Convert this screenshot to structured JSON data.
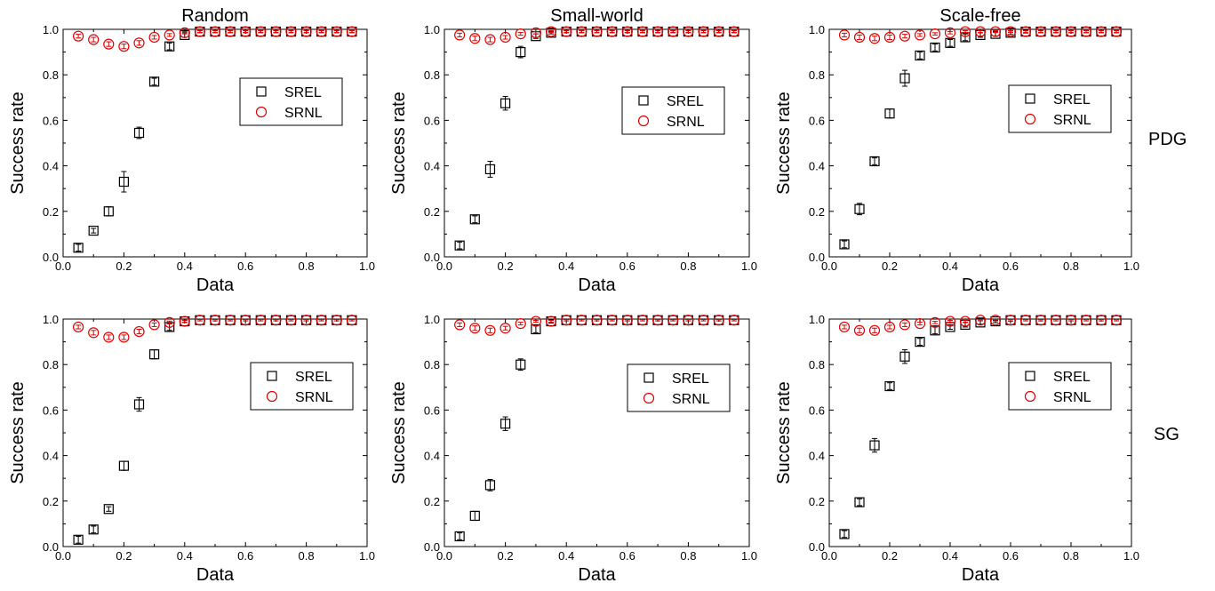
{
  "row_labels": [
    "PDG",
    "SG"
  ],
  "chart_data": [
    {
      "type": "scatter",
      "title": "Random",
      "xlabel": "Data",
      "ylabel": "Success rate",
      "xlim": [
        0.0,
        1.0
      ],
      "ylim": [
        0.0,
        1.0
      ],
      "xticks": [
        "0.0",
        "0.2",
        "0.4",
        "0.6",
        "0.8",
        "1.0"
      ],
      "yticks": [
        "0.0",
        "0.2",
        "0.4",
        "0.6",
        "0.8",
        "1.0"
      ],
      "legend_position": "right",
      "x": [
        0.05,
        0.1,
        0.15,
        0.2,
        0.25,
        0.3,
        0.35,
        0.4,
        0.45,
        0.5,
        0.55,
        0.6,
        0.65,
        0.7,
        0.75,
        0.8,
        0.85,
        0.9,
        0.95
      ],
      "series": [
        {
          "name": "SREL",
          "marker": "square",
          "color": "#000000",
          "values": [
            0.04,
            0.115,
            0.2,
            0.33,
            0.545,
            0.77,
            0.925,
            0.975,
            0.99,
            0.99,
            0.99,
            0.99,
            0.99,
            0.99,
            0.99,
            0.99,
            0.99,
            0.99,
            0.99
          ],
          "errors": [
            0.015,
            0.01,
            0.02,
            0.045,
            0.025,
            0.015,
            0.015,
            0.01,
            0.005,
            0.005,
            0.005,
            0.005,
            0.005,
            0.005,
            0.005,
            0.005,
            0.005,
            0.005,
            0.005
          ]
        },
        {
          "name": "SRNL",
          "marker": "circle",
          "color": "#e00000",
          "values": [
            0.97,
            0.955,
            0.935,
            0.925,
            0.94,
            0.965,
            0.975,
            0.985,
            0.99,
            0.99,
            0.99,
            0.99,
            0.99,
            0.99,
            0.99,
            0.99,
            0.99,
            0.99,
            0.99
          ],
          "errors": [
            0.008,
            0.01,
            0.01,
            0.01,
            0.01,
            0.008,
            0.006,
            0.005,
            0.004,
            0.004,
            0.004,
            0.004,
            0.004,
            0.004,
            0.004,
            0.004,
            0.004,
            0.004,
            0.004
          ]
        }
      ]
    },
    {
      "type": "scatter",
      "title": "Small-world",
      "xlabel": "Data",
      "ylabel": "Success rate",
      "xlim": [
        0.0,
        1.0
      ],
      "ylim": [
        0.0,
        1.0
      ],
      "xticks": [
        "0.0",
        "0.2",
        "0.4",
        "0.6",
        "0.8",
        "1.0"
      ],
      "yticks": [
        "0.0",
        "0.2",
        "0.4",
        "0.6",
        "0.8",
        "1.0"
      ],
      "legend_position": "right",
      "x": [
        0.05,
        0.1,
        0.15,
        0.2,
        0.25,
        0.3,
        0.35,
        0.4,
        0.45,
        0.5,
        0.55,
        0.6,
        0.65,
        0.7,
        0.75,
        0.8,
        0.85,
        0.9,
        0.95
      ],
      "series": [
        {
          "name": "SREL",
          "marker": "square",
          "color": "#000000",
          "values": [
            0.05,
            0.165,
            0.385,
            0.675,
            0.9,
            0.97,
            0.985,
            0.99,
            0.99,
            0.99,
            0.99,
            0.99,
            0.99,
            0.99,
            0.99,
            0.99,
            0.99,
            0.99,
            0.99
          ],
          "errors": [
            0.015,
            0.015,
            0.035,
            0.03,
            0.025,
            0.01,
            0.005,
            0.005,
            0.005,
            0.005,
            0.005,
            0.005,
            0.005,
            0.005,
            0.005,
            0.005,
            0.005,
            0.005,
            0.005
          ]
        },
        {
          "name": "SRNL",
          "marker": "circle",
          "color": "#e00000",
          "values": [
            0.975,
            0.96,
            0.955,
            0.965,
            0.98,
            0.985,
            0.99,
            0.99,
            0.99,
            0.99,
            0.99,
            0.99,
            0.99,
            0.99,
            0.99,
            0.99,
            0.99,
            0.99,
            0.99
          ],
          "errors": [
            0.008,
            0.01,
            0.01,
            0.008,
            0.006,
            0.005,
            0.004,
            0.004,
            0.004,
            0.004,
            0.004,
            0.004,
            0.004,
            0.004,
            0.004,
            0.004,
            0.004,
            0.004,
            0.004
          ]
        }
      ]
    },
    {
      "type": "scatter",
      "title": "Scale-free",
      "xlabel": "Data",
      "ylabel": "Success rate",
      "xlim": [
        0.0,
        1.0
      ],
      "ylim": [
        0.0,
        1.0
      ],
      "xticks": [
        "0.0",
        "0.2",
        "0.4",
        "0.6",
        "0.8",
        "1.0"
      ],
      "yticks": [
        "0.0",
        "0.2",
        "0.4",
        "0.6",
        "0.8",
        "1.0"
      ],
      "legend_position": "right",
      "x": [
        0.05,
        0.1,
        0.15,
        0.2,
        0.25,
        0.3,
        0.35,
        0.4,
        0.45,
        0.5,
        0.55,
        0.6,
        0.65,
        0.7,
        0.75,
        0.8,
        0.85,
        0.9,
        0.95
      ],
      "series": [
        {
          "name": "SREL",
          "marker": "square",
          "color": "#000000",
          "values": [
            0.055,
            0.21,
            0.42,
            0.63,
            0.785,
            0.885,
            0.92,
            0.94,
            0.965,
            0.975,
            0.98,
            0.985,
            0.99,
            0.99,
            0.99,
            0.99,
            0.99,
            0.99,
            0.99
          ],
          "errors": [
            0.015,
            0.025,
            0.015,
            0.02,
            0.035,
            0.015,
            0.015,
            0.015,
            0.015,
            0.01,
            0.01,
            0.008,
            0.006,
            0.005,
            0.005,
            0.005,
            0.005,
            0.005,
            0.005
          ]
        },
        {
          "name": "SRNL",
          "marker": "circle",
          "color": "#e00000",
          "values": [
            0.975,
            0.965,
            0.96,
            0.965,
            0.97,
            0.975,
            0.98,
            0.985,
            0.99,
            0.99,
            0.99,
            0.99,
            0.99,
            0.99,
            0.99,
            0.99,
            0.99,
            0.99,
            0.99
          ],
          "errors": [
            0.008,
            0.01,
            0.01,
            0.01,
            0.008,
            0.006,
            0.005,
            0.005,
            0.004,
            0.004,
            0.004,
            0.004,
            0.004,
            0.004,
            0.004,
            0.004,
            0.004,
            0.004,
            0.004
          ]
        }
      ]
    },
    {
      "type": "scatter",
      "title": "",
      "xlabel": "Data",
      "ylabel": "Success rate",
      "xlim": [
        0.0,
        1.0
      ],
      "ylim": [
        0.0,
        1.0
      ],
      "xticks": [
        "0.0",
        "0.2",
        "0.4",
        "0.6",
        "0.8",
        "1.0"
      ],
      "yticks": [
        "0.0",
        "0.2",
        "0.4",
        "0.6",
        "0.8",
        "1.0"
      ],
      "legend_position": "right",
      "x": [
        0.05,
        0.1,
        0.15,
        0.2,
        0.25,
        0.3,
        0.35,
        0.4,
        0.45,
        0.5,
        0.55,
        0.6,
        0.65,
        0.7,
        0.75,
        0.8,
        0.85,
        0.9,
        0.95
      ],
      "series": [
        {
          "name": "SREL",
          "marker": "square",
          "color": "#000000",
          "values": [
            0.03,
            0.075,
            0.165,
            0.355,
            0.625,
            0.845,
            0.965,
            0.99,
            0.995,
            0.995,
            0.995,
            0.995,
            0.995,
            0.995,
            0.995,
            0.995,
            0.995,
            0.995,
            0.995
          ],
          "errors": [
            0.015,
            0.015,
            0.01,
            0.02,
            0.03,
            0.02,
            0.015,
            0.005,
            0.003,
            0.003,
            0.003,
            0.003,
            0.003,
            0.003,
            0.003,
            0.003,
            0.003,
            0.003,
            0.003
          ]
        },
        {
          "name": "SRNL",
          "marker": "circle",
          "color": "#e00000",
          "values": [
            0.965,
            0.94,
            0.92,
            0.92,
            0.945,
            0.975,
            0.985,
            0.99,
            0.995,
            0.995,
            0.995,
            0.995,
            0.995,
            0.995,
            0.995,
            0.995,
            0.995,
            0.995,
            0.995
          ],
          "errors": [
            0.008,
            0.01,
            0.01,
            0.01,
            0.01,
            0.008,
            0.006,
            0.004,
            0.003,
            0.003,
            0.003,
            0.003,
            0.003,
            0.003,
            0.003,
            0.003,
            0.003,
            0.003,
            0.003
          ]
        }
      ]
    },
    {
      "type": "scatter",
      "title": "",
      "xlabel": "Data",
      "ylabel": "Success rate",
      "xlim": [
        0.0,
        1.0
      ],
      "ylim": [
        0.0,
        1.0
      ],
      "xticks": [
        "0.0",
        "0.2",
        "0.4",
        "0.6",
        "0.8",
        "1.0"
      ],
      "yticks": [
        "0.0",
        "0.2",
        "0.4",
        "0.6",
        "0.8",
        "1.0"
      ],
      "legend_position": "right",
      "x": [
        0.05,
        0.1,
        0.15,
        0.2,
        0.25,
        0.3,
        0.35,
        0.4,
        0.45,
        0.5,
        0.55,
        0.6,
        0.65,
        0.7,
        0.75,
        0.8,
        0.85,
        0.9,
        0.95
      ],
      "series": [
        {
          "name": "SREL",
          "marker": "square",
          "color": "#000000",
          "values": [
            0.045,
            0.135,
            0.27,
            0.54,
            0.8,
            0.955,
            0.99,
            0.995,
            0.995,
            0.995,
            0.995,
            0.995,
            0.995,
            0.995,
            0.995,
            0.995,
            0.995,
            0.995,
            0.995
          ],
          "errors": [
            0.015,
            0.02,
            0.025,
            0.03,
            0.025,
            0.015,
            0.008,
            0.003,
            0.003,
            0.003,
            0.003,
            0.003,
            0.003,
            0.003,
            0.003,
            0.003,
            0.003,
            0.003,
            0.003
          ]
        },
        {
          "name": "SRNL",
          "marker": "circle",
          "color": "#e00000",
          "values": [
            0.975,
            0.96,
            0.95,
            0.96,
            0.98,
            0.99,
            0.99,
            0.995,
            0.995,
            0.995,
            0.995,
            0.995,
            0.995,
            0.995,
            0.995,
            0.995,
            0.995,
            0.995,
            0.995
          ],
          "errors": [
            0.008,
            0.01,
            0.01,
            0.008,
            0.006,
            0.004,
            0.004,
            0.003,
            0.003,
            0.003,
            0.003,
            0.003,
            0.003,
            0.003,
            0.003,
            0.003,
            0.003,
            0.003,
            0.003
          ]
        }
      ]
    },
    {
      "type": "scatter",
      "title": "",
      "xlabel": "Data",
      "ylabel": "Success rate",
      "xlim": [
        0.0,
        1.0
      ],
      "ylim": [
        0.0,
        1.0
      ],
      "xticks": [
        "0.0",
        "0.2",
        "0.4",
        "0.6",
        "0.8",
        "1.0"
      ],
      "yticks": [
        "0.0",
        "0.2",
        "0.4",
        "0.6",
        "0.8",
        "1.0"
      ],
      "legend_position": "right",
      "x": [
        0.05,
        0.1,
        0.15,
        0.2,
        0.25,
        0.3,
        0.35,
        0.4,
        0.45,
        0.5,
        0.55,
        0.6,
        0.65,
        0.7,
        0.75,
        0.8,
        0.85,
        0.9,
        0.95
      ],
      "series": [
        {
          "name": "SREL",
          "marker": "square",
          "color": "#000000",
          "values": [
            0.055,
            0.195,
            0.445,
            0.705,
            0.835,
            0.9,
            0.95,
            0.965,
            0.975,
            0.985,
            0.99,
            0.995,
            0.995,
            0.995,
            0.995,
            0.995,
            0.995,
            0.995,
            0.995
          ],
          "errors": [
            0.015,
            0.015,
            0.03,
            0.015,
            0.03,
            0.015,
            0.015,
            0.01,
            0.01,
            0.008,
            0.006,
            0.004,
            0.003,
            0.003,
            0.003,
            0.003,
            0.003,
            0.003,
            0.003
          ]
        },
        {
          "name": "SRNL",
          "marker": "circle",
          "color": "#e00000",
          "values": [
            0.965,
            0.95,
            0.95,
            0.965,
            0.975,
            0.98,
            0.985,
            0.99,
            0.99,
            0.995,
            0.995,
            0.995,
            0.995,
            0.995,
            0.995,
            0.995,
            0.995,
            0.995,
            0.995
          ],
          "errors": [
            0.008,
            0.01,
            0.01,
            0.008,
            0.008,
            0.006,
            0.005,
            0.004,
            0.004,
            0.003,
            0.003,
            0.003,
            0.003,
            0.003,
            0.003,
            0.003,
            0.003,
            0.003,
            0.003
          ]
        }
      ]
    }
  ]
}
